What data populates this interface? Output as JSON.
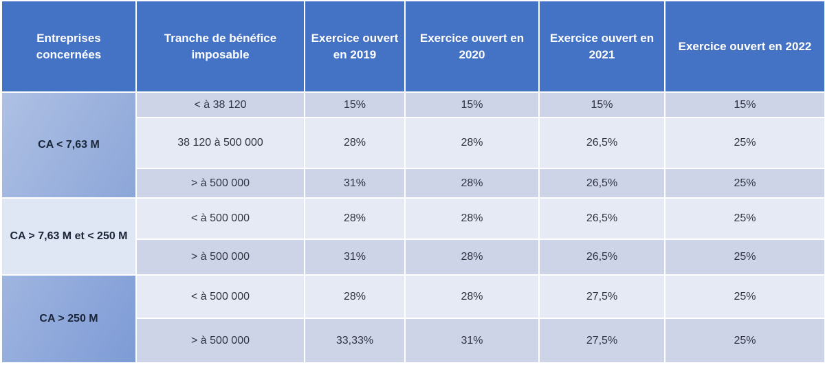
{
  "table": {
    "headers": [
      "Entreprises concernées",
      "Tranche de bénéfice imposable",
      "Exercice ouvert en 2019",
      "Exercice ouvert en 2020",
      "Exercice ouvert en 2021",
      "Exercice ouvert en 2022"
    ],
    "groups": [
      {
        "label": "CA < 7,63 M",
        "rows": [
          {
            "tranche": "< à 38 120",
            "values": [
              "15%",
              "15%",
              "15%",
              "15%"
            ]
          },
          {
            "tranche": "38 120 à 500 000",
            "values": [
              "28%",
              "28%",
              "26,5%",
              "25%"
            ]
          },
          {
            "tranche": "> à 500 000",
            "values": [
              "31%",
              "28%",
              "26,5%",
              "25%"
            ]
          }
        ]
      },
      {
        "label": "CA > 7,63 M et < 250 M",
        "rows": [
          {
            "tranche": "< à 500 000",
            "values": [
              "28%",
              "28%",
              "26,5%",
              "25%"
            ]
          },
          {
            "tranche": "> à 500 000",
            "values": [
              "31%",
              "28%",
              "26,5%",
              "25%"
            ]
          }
        ]
      },
      {
        "label": "CA > 250 M",
        "rows": [
          {
            "tranche": "< à 500 000",
            "values": [
              "28%",
              "28%",
              "27,5%",
              "25%"
            ]
          },
          {
            "tranche": "> à 500 000",
            "values": [
              "33,33%",
              "31%",
              "27,5%",
              "25%"
            ]
          }
        ]
      }
    ]
  },
  "colors": {
    "header_bg": "#4472c4",
    "row_shade": "#cdd4e8",
    "row_light": "#e6eaf4"
  }
}
